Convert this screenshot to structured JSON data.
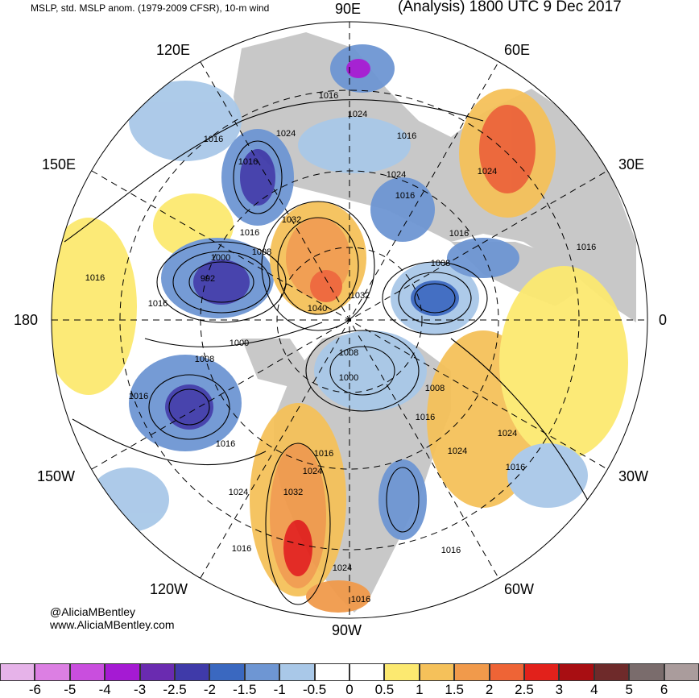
{
  "header": {
    "left": "MSLP, std. MSLP anom. (1979-2009 CFSR), 10-m wind",
    "right": "(Analysis) 1800 UTC 9 Dec 2017"
  },
  "longitude_labels": {
    "top": "90E",
    "upper_left": "120E",
    "upper_right": "60E",
    "left_upper": "150E",
    "right_upper": "30E",
    "left": "180",
    "right": "0",
    "left_lower": "150W",
    "right_lower": "30W",
    "lower_left": "120W",
    "lower_right": "60W",
    "bottom": "90W"
  },
  "isobar_labels": [
    "1016",
    "1024",
    "1016",
    "1024",
    "1016",
    "1024",
    "1024",
    "1016",
    "1016",
    "1016",
    "1032",
    "1016",
    "1008",
    "1008",
    "1000",
    "992",
    "1016",
    "1040",
    "1032",
    "1016",
    "1008",
    "1000",
    "1008",
    "1000",
    "1008",
    "1016",
    "1016",
    "1016",
    "1024",
    "1016",
    "1024",
    "1032",
    "1024",
    "1016",
    "1016",
    "1024",
    "1016",
    "1016",
    "1016",
    "1024"
  ],
  "credits": {
    "handle": "@AliciaMBentley",
    "website": "www.AliciaMBentley.com"
  },
  "colorbar": {
    "labels": [
      "-6",
      "-5",
      "-4",
      "-3",
      "-2.5",
      "-2",
      "-1.5",
      "-1",
      "-0.5",
      "0",
      "0.5",
      "1",
      "1.5",
      "2",
      "2.5",
      "3",
      "4",
      "5",
      "6"
    ],
    "colors": [
      "#e6b3e9",
      "#dc7fe3",
      "#c94ede",
      "#a51ad3",
      "#6a2bb0",
      "#3f3aa9",
      "#3a68c0",
      "#6e96d3",
      "#a9c8e8",
      "#ffffff",
      "#ffffff",
      "#fce970",
      "#f5c15a",
      "#f19a4b",
      "#ee6436",
      "#e2211b",
      "#a80e12",
      "#6e2a2a",
      "#7a6c6c",
      "#aa9c9c"
    ]
  }
}
